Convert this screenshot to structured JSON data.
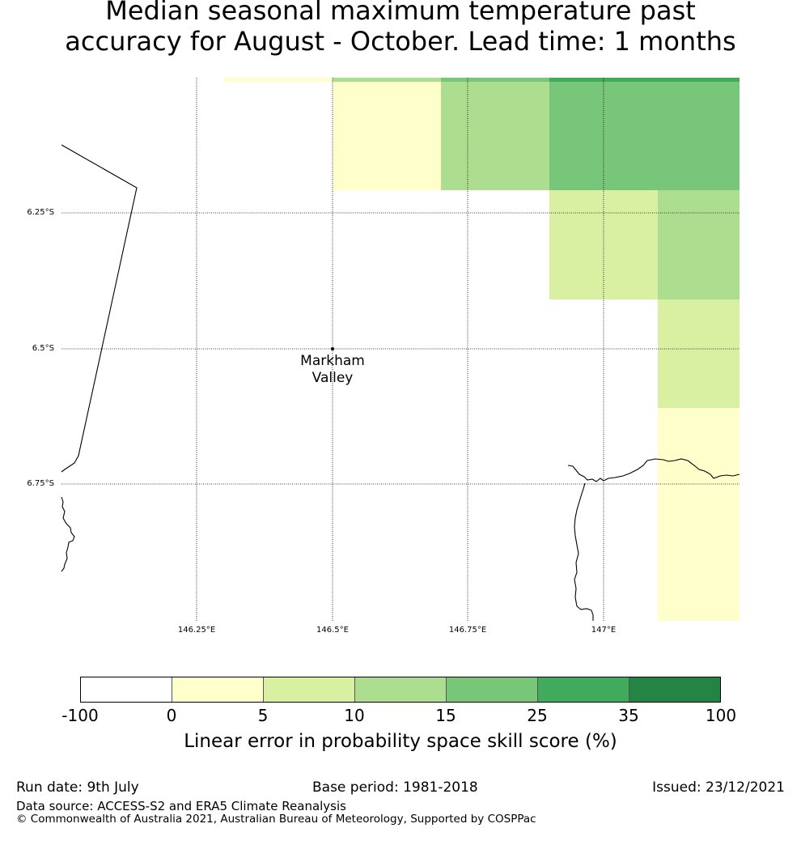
{
  "title": {
    "line1": "Median seasonal maximum temperature past",
    "line2": "accuracy for August - October. Lead time: 1 months"
  },
  "map": {
    "lat_labels": [
      "6.25°S",
      "6.5°S",
      "6.75°S"
    ],
    "lon_labels": [
      "146.25°E",
      "146.5°E",
      "146.75°E",
      "147°E"
    ],
    "place": {
      "name_line1": "Markham",
      "name_line2": "Valley"
    }
  },
  "colorbar": {
    "label": "Linear error in probability space skill score (%)",
    "ticks": [
      "-100",
      "0",
      "5",
      "10",
      "15",
      "25",
      "35",
      "100"
    ],
    "colors": [
      "#ffffff",
      "#ffffcc",
      "#d9f0a3",
      "#addd8e",
      "#78c679",
      "#41ab5d",
      "#238443"
    ]
  },
  "footer": {
    "run_date": "Run date: 9th July",
    "base_period": "Base period: 1981-2018",
    "issued": "Issued: 23/12/2021",
    "data_source": "Data source: ACCESS-S2 and ERA5 Climate Reanalysis",
    "copyright": "© Commonwealth of Australia 2021, Australian Bureau of Meteorology, Supported by COSPPac"
  }
}
